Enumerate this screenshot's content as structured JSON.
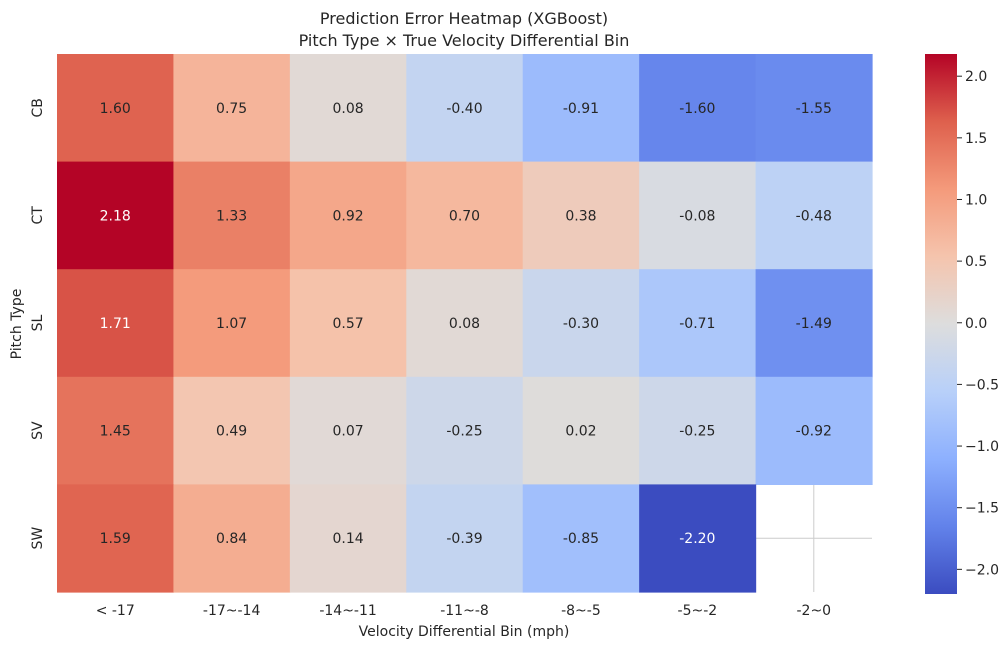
{
  "chart_data": {
    "type": "heatmap",
    "title": "Prediction Error Heatmap (XGBoost)",
    "subtitle": "Pitch Type × True Velocity Differential Bin",
    "xlabel": "Velocity Differential Bin (mph)",
    "ylabel": "Pitch Type",
    "x_categories": [
      "< -17",
      "-17~-14",
      "-14~-11",
      "-11~-8",
      "-8~-5",
      "-5~-2",
      "-2~0"
    ],
    "y_categories": [
      "CB",
      "CT",
      "SL",
      "SV",
      "SW"
    ],
    "values": [
      [
        1.6,
        0.75,
        0.08,
        -0.4,
        -0.91,
        -1.6,
        -1.55
      ],
      [
        2.18,
        1.33,
        0.92,
        0.7,
        0.38,
        -0.08,
        -0.48
      ],
      [
        1.71,
        1.07,
        0.57,
        0.08,
        -0.3,
        -0.71,
        -1.49
      ],
      [
        1.45,
        0.49,
        0.07,
        -0.25,
        0.02,
        -0.25,
        -0.92
      ],
      [
        1.59,
        0.84,
        0.14,
        -0.39,
        -0.85,
        -2.2,
        null
      ]
    ],
    "cell_labels": [
      [
        "1.60",
        "0.75",
        "0.08",
        "-0.40",
        "-0.91",
        "-1.60",
        "-1.55"
      ],
      [
        "2.18",
        "1.33",
        "0.92",
        "0.70",
        "0.38",
        "-0.08",
        "-0.48"
      ],
      [
        "1.71",
        "1.07",
        "0.57",
        "0.08",
        "-0.30",
        "-0.71",
        "-1.49"
      ],
      [
        "1.45",
        "0.49",
        "0.07",
        "-0.25",
        "0.02",
        "-0.25",
        "-0.92"
      ],
      [
        "1.59",
        "0.84",
        "0.14",
        "-0.39",
        "-0.85",
        "-2.20",
        ""
      ]
    ],
    "colormap": "coolwarm",
    "color_range": [
      -2.2,
      2.18
    ],
    "colorbar_ticks": [
      2.0,
      1.5,
      1.0,
      0.5,
      0.0,
      -0.5,
      -1.0,
      -1.5,
      -2.0
    ],
    "colorbar_tick_labels": [
      "2.0",
      "1.5",
      "1.0",
      "0.5",
      "0.0",
      "−0.5",
      "−1.0",
      "−1.5",
      "−2.0"
    ],
    "grid": true
  }
}
